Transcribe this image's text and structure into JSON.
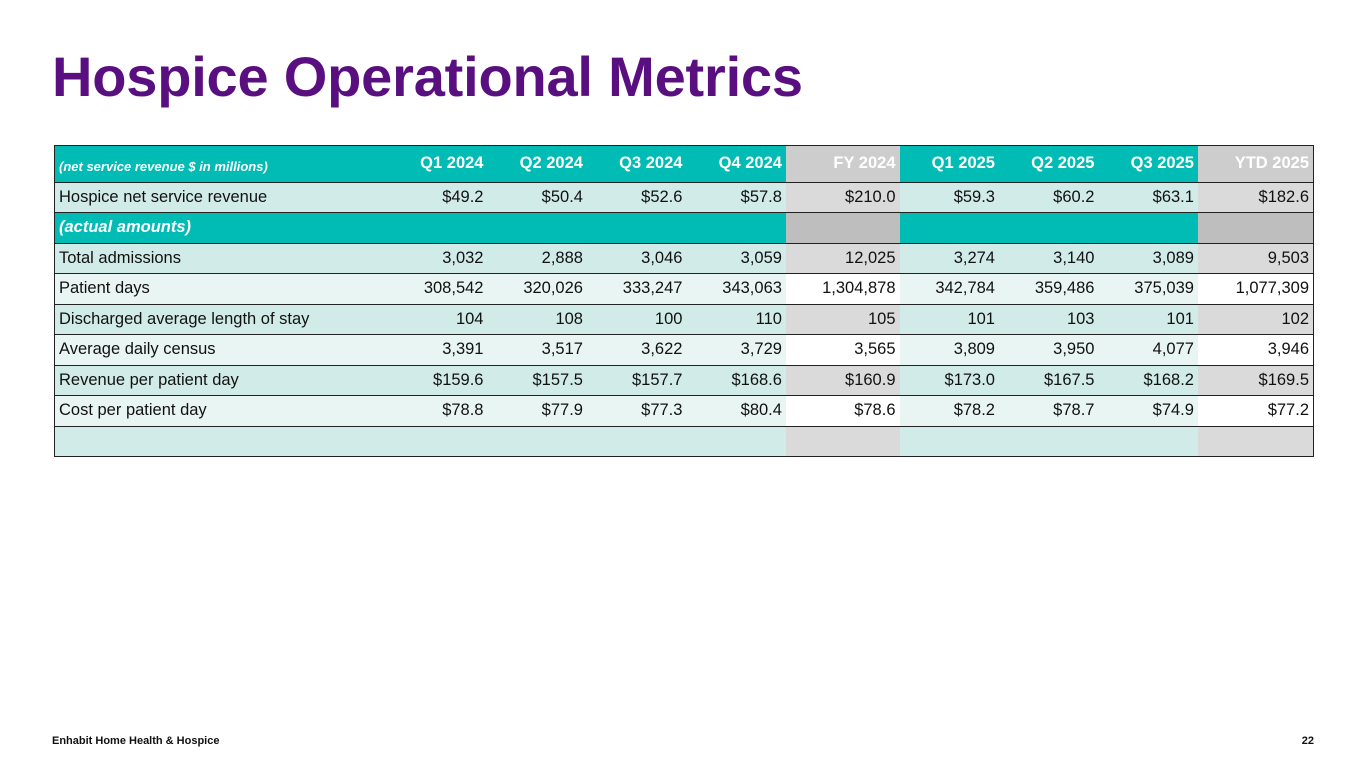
{
  "title": "Hospice Operational Metrics",
  "table": {
    "header_label": "(net service revenue $ in millions)",
    "periods": [
      "Q1 2024",
      "Q2 2024",
      "Q3 2024",
      "Q4 2024",
      "FY 2024",
      "Q1 2025",
      "Q2 2025",
      "Q3 2025",
      "YTD 2025"
    ],
    "revenue_row": {
      "label": "Hospice net service revenue",
      "values": [
        "$49.2",
        "$50.4",
        "$52.6",
        "$57.8",
        "$210.0",
        "$59.3",
        "$60.2",
        "$63.1",
        "$182.6"
      ]
    },
    "section_label": "(actual amounts)",
    "rows": [
      {
        "label": "Total admissions",
        "values": [
          "3,032",
          "2,888",
          "3,046",
          "3,059",
          "12,025",
          "3,274",
          "3,140",
          "3,089",
          "9,503"
        ]
      },
      {
        "label": "Patient days",
        "values": [
          "308,542",
          "320,026",
          "333,247",
          "343,063",
          "1,304,878",
          "342,784",
          "359,486",
          "375,039",
          "1,077,309"
        ]
      },
      {
        "label": "Discharged average length of stay",
        "values": [
          "104",
          "108",
          "100",
          "110",
          "105",
          "101",
          "103",
          "101",
          "102"
        ]
      },
      {
        "label": "Average daily census",
        "values": [
          "3,391",
          "3,517",
          "3,622",
          "3,729",
          "3,565",
          "3,809",
          "3,950",
          "4,077",
          "3,946"
        ]
      },
      {
        "label": "Revenue per patient day",
        "values": [
          "$159.6",
          "$157.5",
          "$157.7",
          "$168.6",
          "$160.9",
          "$173.0",
          "$167.5",
          "$168.2",
          "$169.5"
        ]
      },
      {
        "label": "Cost per patient day",
        "values": [
          "$78.8",
          "$77.9",
          "$77.3",
          "$80.4",
          "$78.6",
          "$78.2",
          "$78.7",
          "$74.9",
          "$77.2"
        ]
      }
    ]
  },
  "footer": {
    "company": "Enhabit Home Health & Hospice",
    "page_number": "22"
  },
  "colors": {
    "title": "#5a0f80",
    "header_teal": "#00bcb4",
    "row_dark": "#d1ebe9",
    "row_light": "#e8f5f3",
    "fy_gray": "#cdcdcd"
  }
}
